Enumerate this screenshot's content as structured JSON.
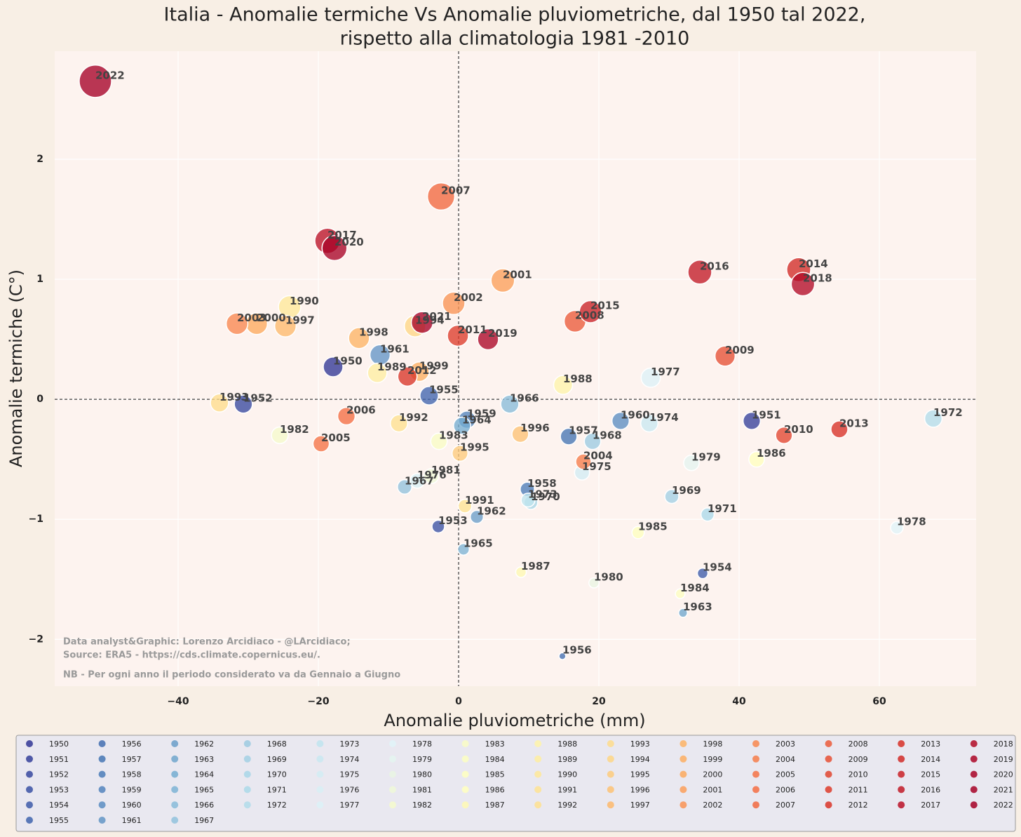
{
  "chart_data": {
    "type": "scatter",
    "title": [
      "Italia - Anomalie termiche Vs Anomalie pluviometriche, dal 1950 tal 2022,",
      "rispetto alla climatologia 1981 -2010"
    ],
    "xlabel": "Anomalie pluviometriche (mm)",
    "ylabel": "Anomalie termiche (C°)",
    "notes": [
      "Data analyst&Graphic: Lorenzo Arcidiaco - @LArcidiaco;",
      "Source: ERA5 - https://cds.climate.copernicus.eu/.",
      "NB - Per ogni anno il periodo considerato va da Gennaio a Giugno"
    ],
    "xlim": [
      -57.6,
      73.8
    ],
    "ylim": [
      -2.39,
      2.9
    ],
    "xticks": [
      {
        "value": -40,
        "label": "−40"
      },
      {
        "value": -20,
        "label": "−20"
      },
      0,
      20,
      40,
      60
    ],
    "yticks": [
      {
        "value": -2,
        "label": "−2"
      },
      {
        "value": -1,
        "label": "−1"
      },
      0,
      1,
      2
    ],
    "grid": true,
    "zero_lines": true,
    "legend": "bottom",
    "series": [
      {
        "name": "1950",
        "color": "#313695",
        "x": [
          -17.9
        ],
        "values": [
          0.27
        ]
      },
      {
        "name": "1951",
        "color": "#343f9a",
        "x": [
          41.8
        ],
        "values": [
          -0.18
        ]
      },
      {
        "name": "1952",
        "color": "#37489f",
        "x": [
          -30.7
        ],
        "values": [
          -0.04
        ]
      },
      {
        "name": "1953",
        "color": "#3a51a4",
        "x": [
          -2.9
        ],
        "values": [
          -1.06
        ]
      },
      {
        "name": "1954",
        "color": "#3d5ba9",
        "x": [
          34.8
        ],
        "values": [
          -1.45
        ]
      },
      {
        "name": "1955",
        "color": "#4064ae",
        "x": [
          -4.2
        ],
        "values": [
          0.03
        ]
      },
      {
        "name": "1956",
        "color": "#436eb1",
        "x": [
          14.8
        ],
        "values": [
          -2.14
        ]
      },
      {
        "name": "1957",
        "color": "#4575b4",
        "x": [
          15.7
        ],
        "values": [
          -0.31
        ]
      },
      {
        "name": "1958",
        "color": "#4b7cb9",
        "x": [
          9.8
        ],
        "values": [
          -0.75
        ]
      },
      {
        "name": "1959",
        "color": "#5384bd",
        "x": [
          1.2
        ],
        "values": [
          -0.17
        ]
      },
      {
        "name": "1960",
        "color": "#5b8dc2",
        "x": [
          23.1
        ],
        "values": [
          -0.18
        ]
      },
      {
        "name": "1961",
        "color": "#6395c6",
        "x": [
          -11.2
        ],
        "values": [
          0.37
        ]
      },
      {
        "name": "1962",
        "color": "#6a9ec9",
        "x": [
          2.6
        ],
        "values": [
          -0.98
        ]
      },
      {
        "name": "1963",
        "color": "#70a6cd",
        "x": [
          32.0
        ],
        "values": [
          -1.78
        ]
      },
      {
        "name": "1964",
        "color": "#74add1",
        "x": [
          0.5
        ],
        "values": [
          -0.22
        ]
      },
      {
        "name": "1965",
        "color": "#7db3d5",
        "x": [
          0.7
        ],
        "values": [
          -1.25
        ]
      },
      {
        "name": "1966",
        "color": "#88bbd9",
        "x": [
          7.3
        ],
        "values": [
          -0.04
        ]
      },
      {
        "name": "1967",
        "color": "#92c2dd",
        "x": [
          -7.7
        ],
        "values": [
          -0.73
        ]
      },
      {
        "name": "1968",
        "color": "#9ccae1",
        "x": [
          19.1
        ],
        "values": [
          -0.35
        ]
      },
      {
        "name": "1969",
        "color": "#a3d0e4",
        "x": [
          30.4
        ],
        "values": [
          -0.81
        ]
      },
      {
        "name": "1970",
        "color": "#a8d6e7",
        "x": [
          10.3
        ],
        "values": [
          -0.86
        ]
      },
      {
        "name": "1971",
        "color": "#abd9e9",
        "x": [
          35.5
        ],
        "values": [
          -0.96
        ]
      },
      {
        "name": "1972",
        "color": "#b2dcea",
        "x": [
          67.7
        ],
        "values": [
          -0.16
        ]
      },
      {
        "name": "1973",
        "color": "#bfe4ee",
        "x": [
          9.9
        ],
        "values": [
          -0.84
        ]
      },
      {
        "name": "1974",
        "color": "#c9e8f1",
        "x": [
          27.2
        ],
        "values": [
          -0.2
        ]
      },
      {
        "name": "1975",
        "color": "#d2ecf3",
        "x": [
          17.6
        ],
        "values": [
          -0.61
        ]
      },
      {
        "name": "1976",
        "color": "#d8eff5",
        "x": [
          -5.9
        ],
        "values": [
          -0.68
        ]
      },
      {
        "name": "1977",
        "color": "#dcf1f7",
        "x": [
          27.4
        ],
        "values": [
          0.18
        ]
      },
      {
        "name": "1978",
        "color": "#e0f3f8",
        "x": [
          62.5
        ],
        "values": [
          -1.07
        ]
      },
      {
        "name": "1979",
        "color": "#e4f4f0",
        "x": [
          33.2
        ],
        "values": [
          -0.53
        ]
      },
      {
        "name": "1980",
        "color": "#e9f5e3",
        "x": [
          19.3
        ],
        "values": [
          -1.53
        ]
      },
      {
        "name": "1981",
        "color": "#eff8d8",
        "x": [
          -3.9
        ],
        "values": [
          -0.64
        ]
      },
      {
        "name": "1982",
        "color": "#f5facc",
        "x": [
          -25.5
        ],
        "values": [
          -0.3
        ]
      },
      {
        "name": "1983",
        "color": "#f9fcc5",
        "x": [
          -2.8
        ],
        "values": [
          -0.35
        ]
      },
      {
        "name": "1984",
        "color": "#fcfec2",
        "x": [
          31.6
        ],
        "values": [
          -1.62
        ]
      },
      {
        "name": "1985",
        "color": "#feffbf",
        "x": [
          25.6
        ],
        "values": [
          -1.11
        ]
      },
      {
        "name": "1986",
        "color": "#ffffbf",
        "x": [
          42.5
        ],
        "values": [
          -0.5
        ]
      },
      {
        "name": "1987",
        "color": "#fef9b4",
        "x": [
          8.9
        ],
        "values": [
          -1.44
        ]
      },
      {
        "name": "1988",
        "color": "#fef3aa",
        "x": [
          14.9
        ],
        "values": [
          0.12
        ]
      },
      {
        "name": "1989",
        "color": "#feeda1",
        "x": [
          -11.6
        ],
        "values": [
          0.22
        ]
      },
      {
        "name": "1990",
        "color": "#fee899",
        "x": [
          -24.1
        ],
        "values": [
          0.77
        ]
      },
      {
        "name": "1991",
        "color": "#fee393",
        "x": [
          0.9
        ],
        "values": [
          -0.89
        ]
      },
      {
        "name": "1992",
        "color": "#fee090",
        "x": [
          -8.5
        ],
        "values": [
          -0.2
        ]
      },
      {
        "name": "1993",
        "color": "#fedc8c",
        "x": [
          -34.1
        ],
        "values": [
          -0.03
        ]
      },
      {
        "name": "1994",
        "color": "#fed685",
        "x": [
          -6.2
        ],
        "values": [
          0.61
        ]
      },
      {
        "name": "1995",
        "color": "#fdcb7c",
        "x": [
          0.2
        ],
        "values": [
          -0.45
        ]
      },
      {
        "name": "1996",
        "color": "#fdc274",
        "x": [
          8.8
        ],
        "values": [
          -0.29
        ]
      },
      {
        "name": "1997",
        "color": "#fdb96c",
        "x": [
          -24.7
        ],
        "values": [
          0.61
        ]
      },
      {
        "name": "1998",
        "color": "#fdb365",
        "x": [
          -14.2
        ],
        "values": [
          0.51
        ]
      },
      {
        "name": "1999",
        "color": "#fdae61",
        "x": [
          -5.6
        ],
        "values": [
          0.23
        ]
      },
      {
        "name": "2000",
        "color": "#fca95e",
        "x": [
          -28.8
        ],
        "values": [
          0.63
        ]
      },
      {
        "name": "2001",
        "color": "#fb9f5a",
        "x": [
          6.3
        ],
        "values": [
          0.99
        ]
      },
      {
        "name": "2002",
        "color": "#f99355",
        "x": [
          -0.7
        ],
        "values": [
          0.8
        ]
      },
      {
        "name": "2003",
        "color": "#f8874f",
        "x": [
          -31.6
        ],
        "values": [
          0.63
        ]
      },
      {
        "name": "2004",
        "color": "#f67c4a",
        "x": [
          17.8
        ],
        "values": [
          -0.52
        ]
      },
      {
        "name": "2005",
        "color": "#f57245",
        "x": [
          -19.6
        ],
        "values": [
          -0.37
        ]
      },
      {
        "name": "2006",
        "color": "#f46d43",
        "x": [
          -16.0
        ],
        "values": [
          -0.14
        ]
      },
      {
        "name": "2007",
        "color": "#f1683f",
        "x": [
          -2.5
        ],
        "values": [
          1.69
        ]
      },
      {
        "name": "2008",
        "color": "#eb5a3a",
        "x": [
          16.6
        ],
        "values": [
          0.65
        ]
      },
      {
        "name": "2009",
        "color": "#e64f34",
        "x": [
          38.0
        ],
        "values": [
          0.36
        ]
      },
      {
        "name": "2010",
        "color": "#e1452f",
        "x": [
          46.4
        ],
        "values": [
          -0.3
        ]
      },
      {
        "name": "2011",
        "color": "#dd3b2a",
        "x": [
          -0.1
        ],
        "values": [
          0.53
        ]
      },
      {
        "name": "2012",
        "color": "#d93428",
        "x": [
          -7.3
        ],
        "values": [
          0.19
        ]
      },
      {
        "name": "2013",
        "color": "#d73027",
        "x": [
          54.3
        ],
        "values": [
          -0.25
        ]
      },
      {
        "name": "2014",
        "color": "#d12a27",
        "x": [
          48.5
        ],
        "values": [
          1.08
        ]
      },
      {
        "name": "2015",
        "color": "#c92127",
        "x": [
          18.8
        ],
        "values": [
          0.73
        ]
      },
      {
        "name": "2016",
        "color": "#c11a27",
        "x": [
          34.4
        ],
        "values": [
          1.06
        ]
      },
      {
        "name": "2017",
        "color": "#ba1127",
        "x": [
          -18.7
        ],
        "values": [
          1.32
        ]
      },
      {
        "name": "2018",
        "color": "#b20a26",
        "x": [
          49.1
        ],
        "values": [
          0.96
        ]
      },
      {
        "name": "2019",
        "color": "#ab0526",
        "x": [
          4.2
        ],
        "values": [
          0.5
        ]
      },
      {
        "name": "2020",
        "color": "#a80226",
        "x": [
          -17.7
        ],
        "values": [
          1.26
        ]
      },
      {
        "name": "2021",
        "color": "#a60126",
        "x": [
          -5.2
        ],
        "values": [
          0.64
        ]
      },
      {
        "name": "2022",
        "color": "#a50026",
        "x": [
          -51.8
        ],
        "values": [
          2.65
        ]
      }
    ]
  }
}
